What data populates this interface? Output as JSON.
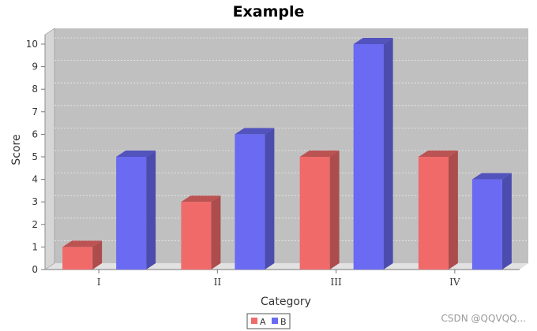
{
  "chart_data": {
    "type": "bar",
    "title": "Example",
    "xlabel": "Category",
    "ylabel": "Score",
    "categories": [
      "I",
      "II",
      "III",
      "IV"
    ],
    "series": [
      {
        "name": "A",
        "values": [
          1,
          3,
          5,
          5
        ],
        "color": "#f06a6a"
      },
      {
        "name": "B",
        "values": [
          5,
          6,
          10,
          4
        ],
        "color": "#6a6af2"
      }
    ],
    "ylim": [
      0,
      10
    ],
    "yticks": [
      0,
      1,
      2,
      3,
      4,
      5,
      6,
      7,
      8,
      9,
      10
    ],
    "grid": true,
    "legend_position": "bottom-center",
    "render_3d": true
  },
  "watermark": "CSDN @QQVQQ..."
}
